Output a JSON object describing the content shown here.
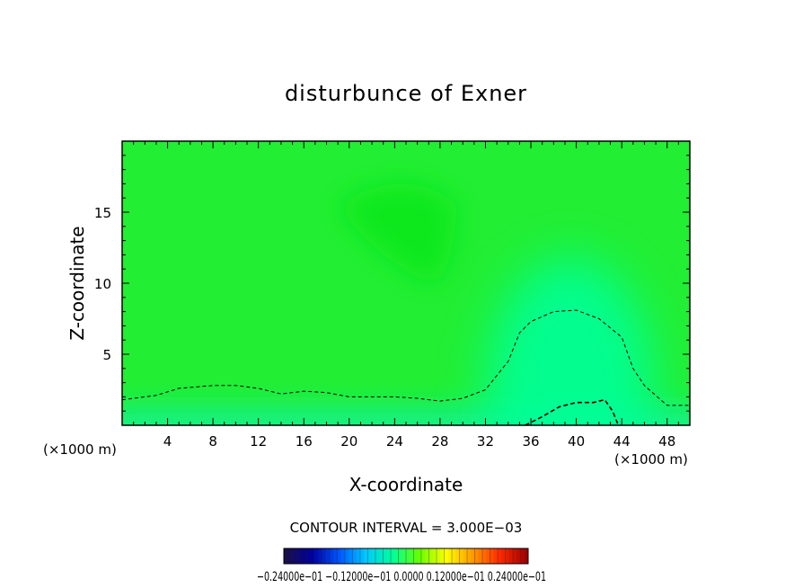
{
  "chart_data": {
    "type": "heatmap",
    "title": "disturbunce of Exner",
    "xlabel": "X-coordinate",
    "ylabel": "Z-coordinate",
    "x_unit_left": "(×1000 m)",
    "x_unit_right": "(×1000 m)",
    "xlim": [
      0,
      50
    ],
    "ylim": [
      0,
      20
    ],
    "x_ticks": [
      4,
      8,
      12,
      16,
      20,
      24,
      28,
      32,
      36,
      40,
      44,
      48
    ],
    "y_ticks": [
      5,
      10,
      15
    ],
    "contour_interval_label": "CONTOUR INTERVAL = 3.000E−03",
    "colorbar": {
      "label_text": "−0.24000e−01 −0.12000e−01 0.0000 0.12000e−01 0.24000e−01",
      "range": [
        -0.024,
        0.024
      ],
      "colors": [
        "#1a0f4a",
        "#0000a0",
        "#0055ff",
        "#00c8ff",
        "#00ff9a",
        "#66ff00",
        "#ffff00",
        "#ff9900",
        "#ff2a00",
        "#a00000"
      ]
    },
    "field_colors": {
      "background": "#22ee33",
      "upper_core": "#11e81a",
      "near_surface": "#18f080",
      "mountain_wave": "#00ff99"
    },
    "contours": [
      {
        "name": "contour-upper",
        "style": "dashed",
        "points": [
          [
            0,
            1.8
          ],
          [
            3,
            2.1
          ],
          [
            5,
            2.6
          ],
          [
            8,
            2.8
          ],
          [
            10,
            2.8
          ],
          [
            12,
            2.6
          ],
          [
            14,
            2.2
          ],
          [
            16,
            2.4
          ],
          [
            18,
            2.3
          ],
          [
            20,
            2.0
          ],
          [
            22,
            2.0
          ],
          [
            24,
            2.0
          ],
          [
            26,
            1.9
          ],
          [
            28,
            1.7
          ],
          [
            30,
            1.9
          ],
          [
            32,
            2.5
          ],
          [
            33,
            3.5
          ],
          [
            34,
            4.5
          ],
          [
            35,
            6.5
          ],
          [
            36,
            7.3
          ],
          [
            38,
            8.0
          ],
          [
            40,
            8.1
          ],
          [
            42,
            7.5
          ],
          [
            44,
            6.2
          ],
          [
            45,
            4.0
          ],
          [
            46,
            2.8
          ],
          [
            48,
            1.4
          ],
          [
            50,
            1.4
          ]
        ]
      },
      {
        "name": "contour-lower",
        "style": "dashed",
        "points": [
          [
            35.5,
            0.0
          ],
          [
            37,
            0.6
          ],
          [
            38.5,
            1.3
          ],
          [
            40,
            1.6
          ],
          [
            41.5,
            1.6
          ],
          [
            42.5,
            1.8
          ],
          [
            43.2,
            1.0
          ],
          [
            43.7,
            0.0
          ]
        ]
      }
    ]
  }
}
